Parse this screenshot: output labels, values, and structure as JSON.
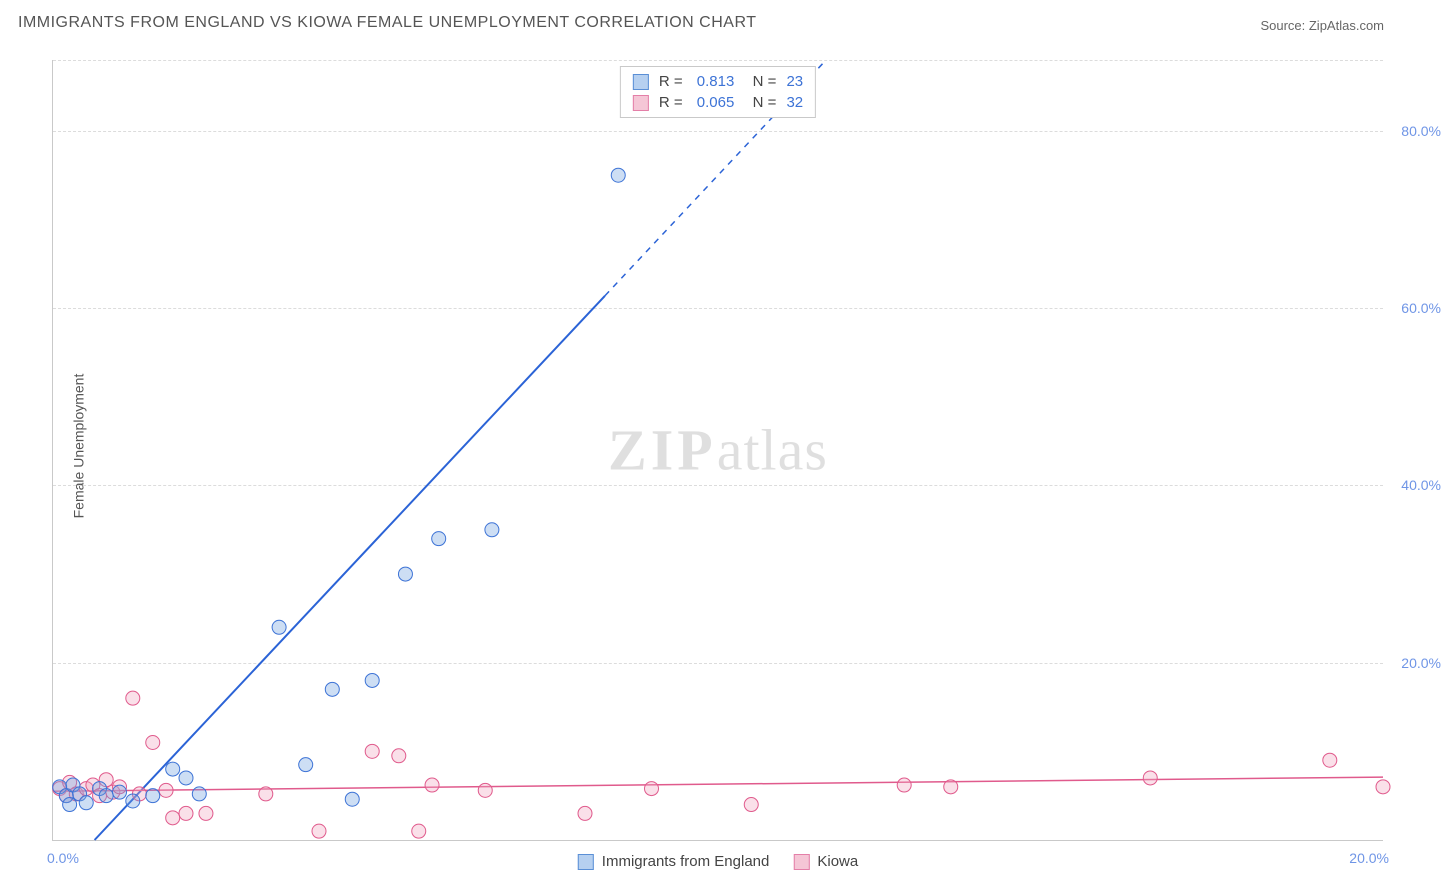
{
  "title": "IMMIGRANTS FROM ENGLAND VS KIOWA FEMALE UNEMPLOYMENT CORRELATION CHART",
  "source": "Source: ZipAtlas.com",
  "ylabel": "Female Unemployment",
  "watermark_a": "ZIP",
  "watermark_b": "atlas",
  "chart": {
    "type": "scatter",
    "xlim": [
      0,
      20
    ],
    "ylim": [
      0,
      88
    ],
    "x_origin_label": "0.0%",
    "x_end_label": "20.0%",
    "ytick_values": [
      20,
      40,
      60,
      80
    ],
    "ytick_labels": [
      "20.0%",
      "40.0%",
      "60.0%",
      "80.0%"
    ],
    "grid_color": "#dcdcdc",
    "background_color": "#ffffff",
    "series": [
      {
        "name": "Immigrants from England",
        "color_fill": "#b6d0f0",
        "color_stroke": "#5a8fd6",
        "R": "0.813",
        "N": "23",
        "marker_radius": 7,
        "points": [
          [
            0.1,
            6.0
          ],
          [
            0.2,
            5.0
          ],
          [
            0.25,
            4.0
          ],
          [
            0.3,
            6.2
          ],
          [
            0.4,
            5.2
          ],
          [
            0.5,
            4.2
          ],
          [
            0.7,
            5.8
          ],
          [
            0.8,
            5.0
          ],
          [
            1.0,
            5.4
          ],
          [
            1.2,
            4.4
          ],
          [
            1.5,
            5.0
          ],
          [
            1.8,
            8.0
          ],
          [
            2.0,
            7.0
          ],
          [
            2.2,
            5.2
          ],
          [
            3.4,
            24.0
          ],
          [
            3.8,
            8.5
          ],
          [
            4.2,
            17.0
          ],
          [
            4.5,
            4.6
          ],
          [
            4.8,
            18.0
          ],
          [
            5.3,
            30.0
          ],
          [
            5.8,
            34.0
          ],
          [
            6.6,
            35.0
          ],
          [
            8.5,
            75.0
          ]
        ],
        "trend": {
          "slope": 8.0,
          "intercept": -5.0,
          "x_solid_max": 8.3
        }
      },
      {
        "name": "Kiowa",
        "color_fill": "#f5c6d6",
        "color_stroke": "#e47fa8",
        "R": "0.065",
        "N": "32",
        "marker_radius": 7,
        "points": [
          [
            0.1,
            5.8
          ],
          [
            0.2,
            5.0
          ],
          [
            0.25,
            6.5
          ],
          [
            0.35,
            5.2
          ],
          [
            0.5,
            5.8
          ],
          [
            0.6,
            6.2
          ],
          [
            0.7,
            5.0
          ],
          [
            0.8,
            6.8
          ],
          [
            0.9,
            5.4
          ],
          [
            1.0,
            6.0
          ],
          [
            1.2,
            16.0
          ],
          [
            1.3,
            5.2
          ],
          [
            1.5,
            11.0
          ],
          [
            1.7,
            5.6
          ],
          [
            1.8,
            2.5
          ],
          [
            2.0,
            3.0
          ],
          [
            2.3,
            3.0
          ],
          [
            3.2,
            5.2
          ],
          [
            4.0,
            1.0
          ],
          [
            4.8,
            10.0
          ],
          [
            5.2,
            9.5
          ],
          [
            5.5,
            1.0
          ],
          [
            5.7,
            6.2
          ],
          [
            6.5,
            5.6
          ],
          [
            8.0,
            3.0
          ],
          [
            9.0,
            5.8
          ],
          [
            10.5,
            4.0
          ],
          [
            12.8,
            6.2
          ],
          [
            13.5,
            6.0
          ],
          [
            16.5,
            7.0
          ],
          [
            19.2,
            9.0
          ],
          [
            20.0,
            6.0
          ]
        ],
        "trend": {
          "slope": 0.08,
          "intercept": 5.5,
          "x_solid_max": 20
        }
      }
    ],
    "legend_bottom": [
      {
        "label": "Immigrants from England",
        "swatch": "blue"
      },
      {
        "label": "Kiowa",
        "swatch": "pink"
      }
    ]
  }
}
